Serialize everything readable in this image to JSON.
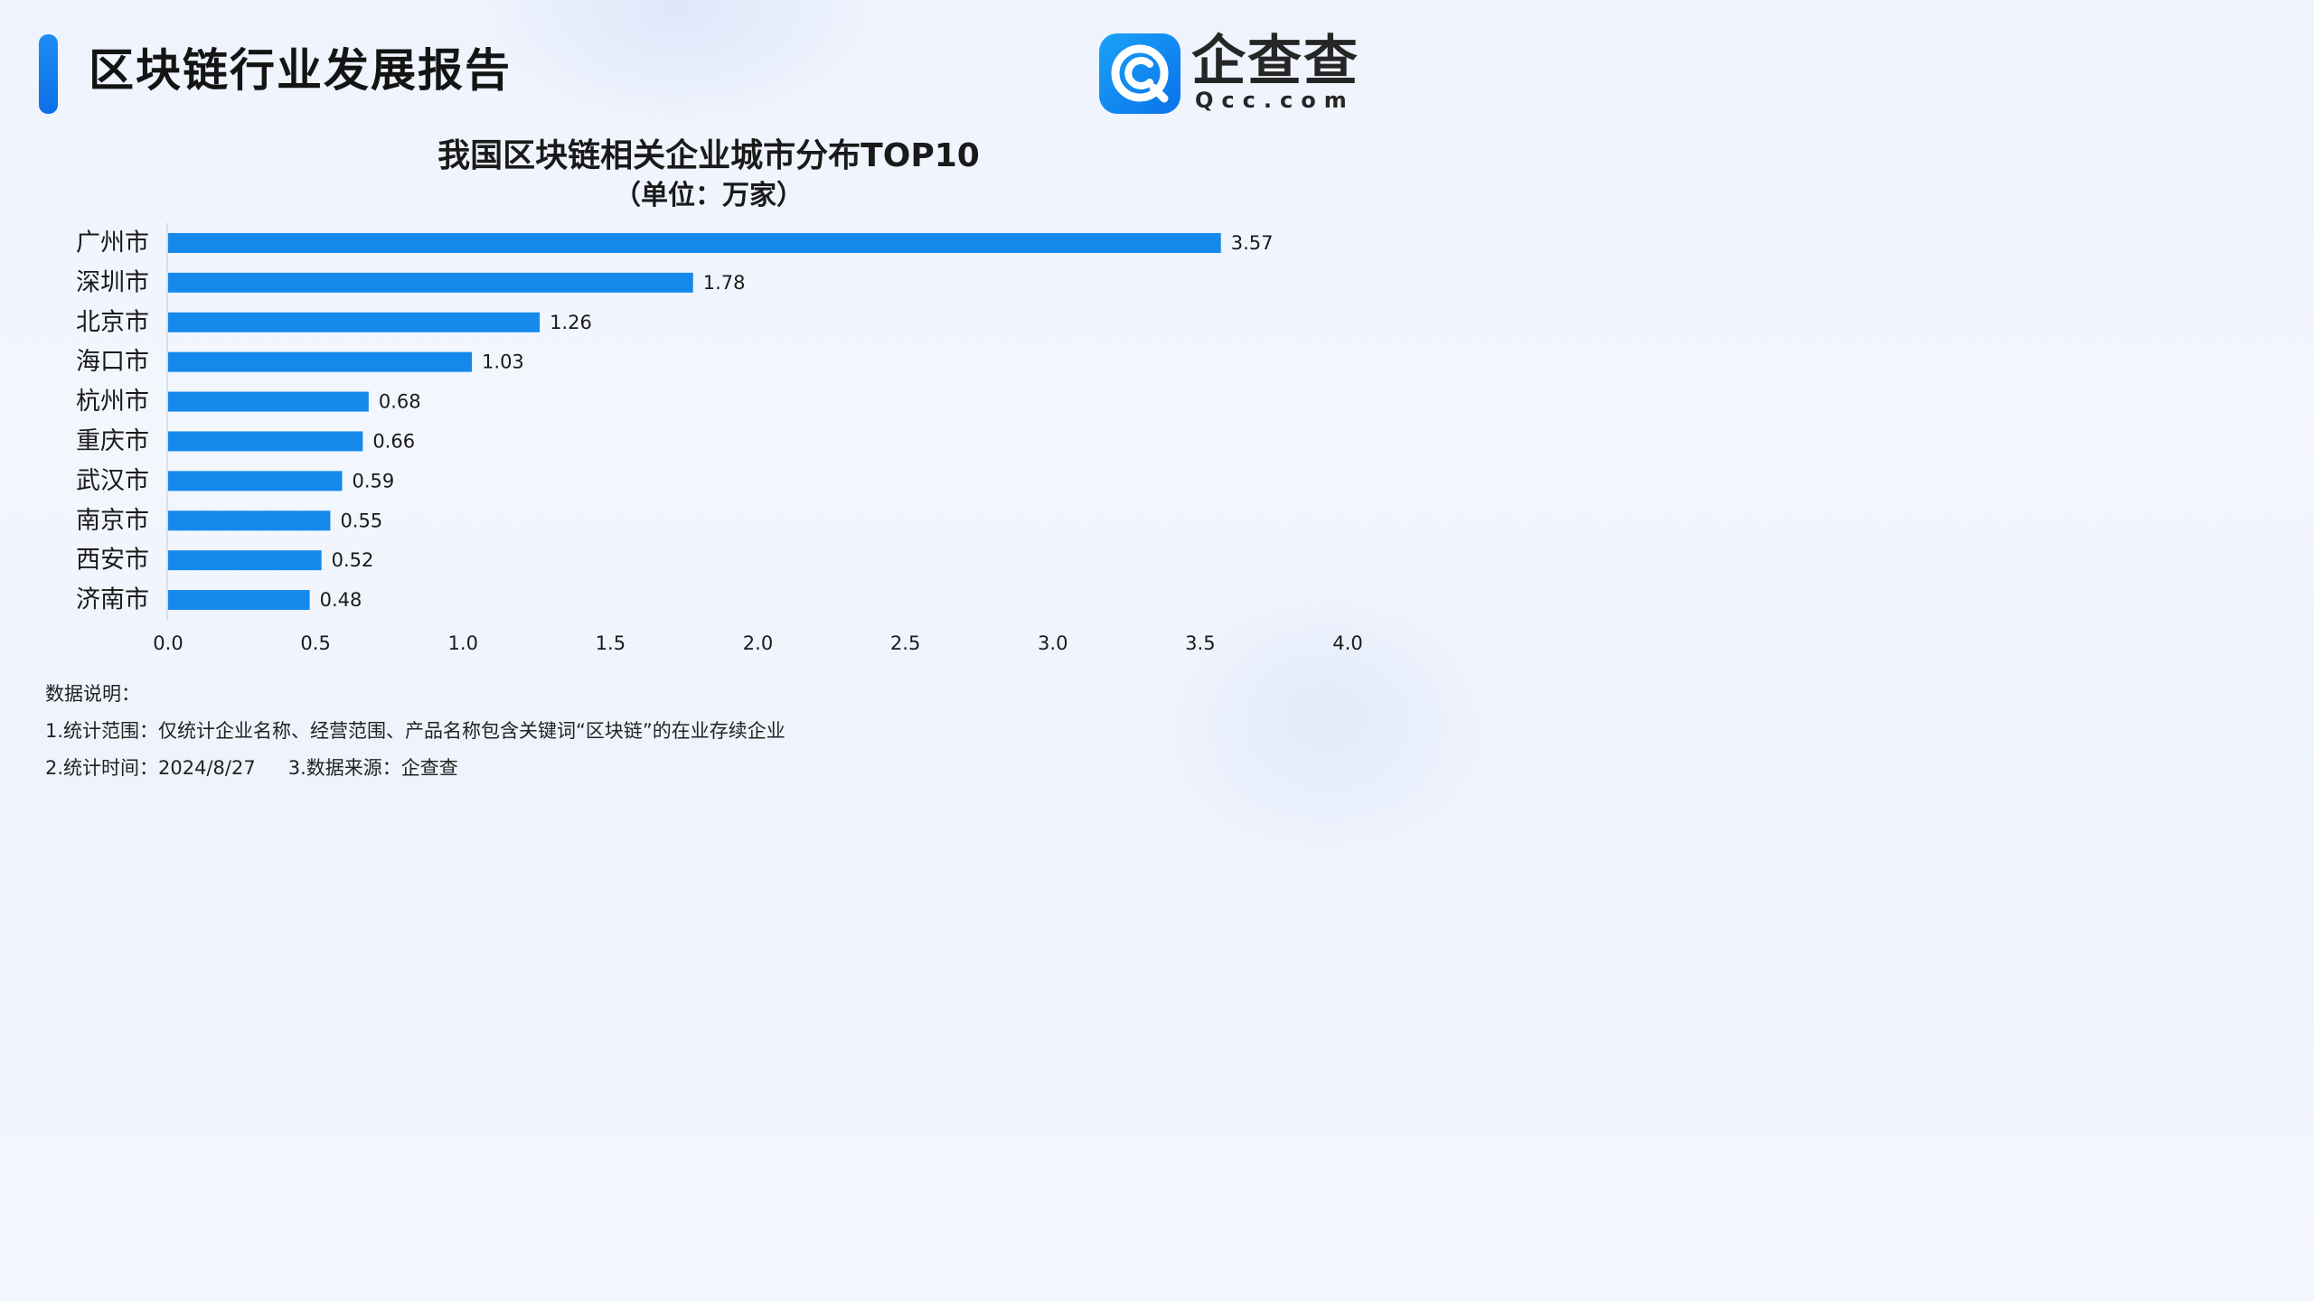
{
  "header": {
    "title": "区块链行业发展报告",
    "accent_color": "#0f7eee"
  },
  "brand": {
    "logo_icon": "qcc-logo-icon",
    "name": "企查查",
    "domain": "Qcc.com",
    "badge_color": "#1593f2"
  },
  "chart_data": {
    "type": "bar",
    "orientation": "horizontal",
    "title": "我国区块链相关企业城市分布TOP10",
    "subtitle": "（单位：万家）",
    "categories": [
      "广州市",
      "深圳市",
      "北京市",
      "海口市",
      "杭州市",
      "重庆市",
      "武汉市",
      "南京市",
      "西安市",
      "济南市"
    ],
    "values": [
      3.57,
      1.78,
      1.26,
      1.03,
      0.68,
      0.66,
      0.59,
      0.55,
      0.52,
      0.48
    ],
    "value_labels": [
      "3.57",
      "1.78",
      "1.26",
      "1.03",
      "0.68",
      "0.66",
      "0.59",
      "0.55",
      "0.52",
      "0.48"
    ],
    "xlim": [
      0,
      4.0
    ],
    "xticks": [
      "0.0",
      "0.5",
      "1.0",
      "1.5",
      "2.0",
      "2.5",
      "3.0",
      "3.5",
      "4.0"
    ],
    "bar_color": "#1589eb",
    "grid": false,
    "legend": "none"
  },
  "notes": {
    "heading": "数据说明：",
    "line1": "1.统计范围：仅统计企业名称、经营范围、产品名称包含关键词“区块链”的在业存续企业",
    "line2a": "2.统计时间：2024/8/27",
    "line2b": "3.数据来源：企查查"
  }
}
